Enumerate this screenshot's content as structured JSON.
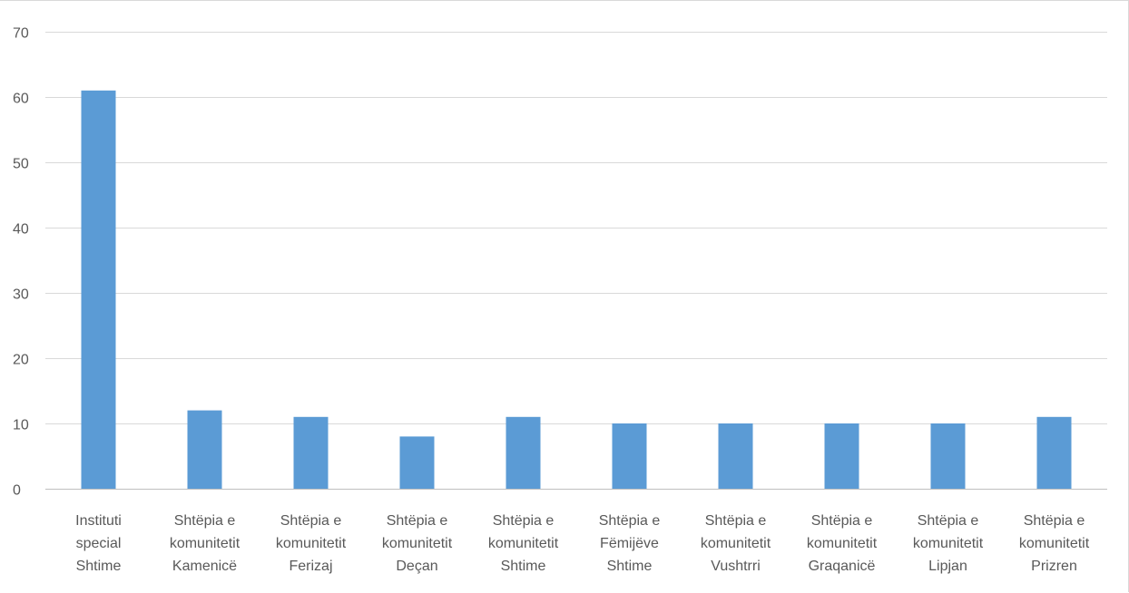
{
  "chart_data": {
    "type": "bar",
    "title": "",
    "xlabel": "",
    "ylabel": "",
    "ylim": [
      0,
      70
    ],
    "yticks": [
      0,
      10,
      20,
      30,
      40,
      50,
      60,
      70
    ],
    "grid": true,
    "legend": "none",
    "bar_color": "#5B9BD5",
    "categories": [
      [
        "Instituti",
        "special",
        "Shtime"
      ],
      [
        "Shtëpia e",
        "komunitetit",
        "Kamenicë"
      ],
      [
        "Shtëpia e",
        "komunitetit",
        "Ferizaj"
      ],
      [
        "Shtëpia e",
        "komunitetit",
        "Deçan"
      ],
      [
        "Shtëpia e",
        "komunitetit",
        "Shtime"
      ],
      [
        "Shtëpia e",
        "Fëmijëve",
        "Shtime"
      ],
      [
        "Shtëpia e",
        "komunitetit",
        "Vushtrri"
      ],
      [
        "Shtëpia e",
        "komunitetit",
        "Graqanicë"
      ],
      [
        "Shtëpia e",
        "komunitetit",
        "Lipjan"
      ],
      [
        "Shtëpia e",
        "komunitetit",
        "Prizren"
      ]
    ],
    "values": [
      61,
      12,
      11,
      8,
      11,
      10,
      10,
      10,
      10,
      11
    ]
  },
  "colors": {
    "gridline": "#d9d9d9",
    "axis": "#bfbfbf",
    "text": "#595959"
  }
}
